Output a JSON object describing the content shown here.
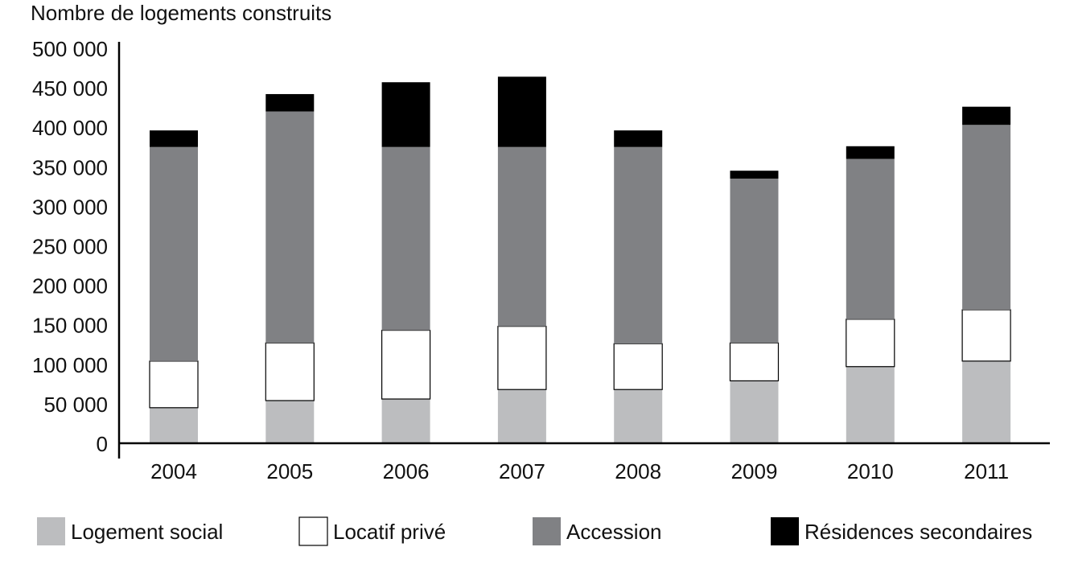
{
  "chart_data": {
    "type": "bar",
    "stacked": true,
    "title": "",
    "ylabel": "Nombre de logements construits",
    "xlabel": "",
    "ylim": [
      0,
      500000
    ],
    "yticks": [
      0,
      50000,
      100000,
      150000,
      200000,
      250000,
      300000,
      350000,
      400000,
      450000,
      500000
    ],
    "ytick_labels": [
      "0",
      "50 000",
      "100 000",
      "150 000",
      "200 000",
      "250 000",
      "300 000",
      "350 000",
      "400 000",
      "450 000",
      "500 000"
    ],
    "categories": [
      "2004",
      "2005",
      "2006",
      "2007",
      "2008",
      "2009",
      "2010",
      "2011"
    ],
    "grid": false,
    "legend_position": "bottom",
    "series": [
      {
        "name": "Logement social",
        "color": "#bcbdbf",
        "values": [
          45000,
          54000,
          56000,
          68000,
          68000,
          79000,
          97000,
          104000
        ]
      },
      {
        "name": "Locatif privé",
        "color": "#ffffff",
        "values": [
          59000,
          73000,
          87000,
          80000,
          58000,
          48000,
          60000,
          65000
        ]
      },
      {
        "name": "Accession",
        "color": "#808184",
        "values": [
          271000,
          293000,
          232000,
          227000,
          249000,
          208000,
          203000,
          234000
        ]
      },
      {
        "name": "Résidences secondaires",
        "color": "#000000",
        "values": [
          21000,
          22000,
          82000,
          89000,
          21000,
          10000,
          16000,
          23000
        ]
      }
    ]
  }
}
